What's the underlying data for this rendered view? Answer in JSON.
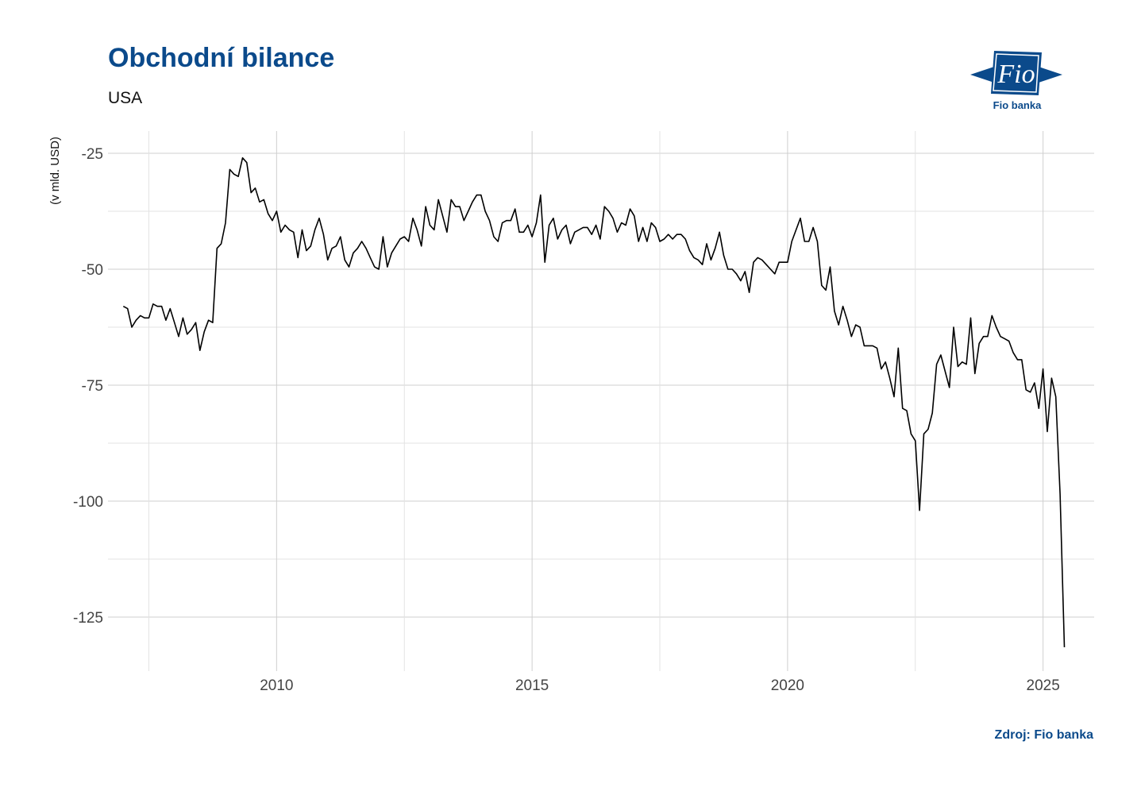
{
  "header": {
    "title": "Obchodní bilance",
    "subtitle": "USA"
  },
  "logo": {
    "icon": "fio-logo-icon",
    "text": "Fio banka",
    "color": "#0b4a8b"
  },
  "source": "Zdroj: Fio banka",
  "chart_data": {
    "type": "line",
    "title": "Obchodní bilance",
    "subtitle": "USA",
    "xlabel": "",
    "ylabel": "(v mld. USD)",
    "xlim": [
      2006.7,
      2026.0
    ],
    "ylim": [
      -136,
      -20
    ],
    "x_ticks": [
      2010,
      2015,
      2020,
      2025
    ],
    "x_tick_labels": [
      "2010",
      "2015",
      "2020",
      "2025"
    ],
    "y_ticks": [
      -25,
      -50,
      -75,
      -100,
      -125
    ],
    "y_tick_labels": [
      "-25",
      "-50",
      "-75",
      "-100",
      "-125"
    ],
    "grid": true,
    "line_color": "#000000",
    "series": [
      {
        "x_start": 2007.0,
        "x_step": 0.0833333,
        "values": [
          -58.0,
          -58.5,
          -62.5,
          -61.0,
          -60.0,
          -60.5,
          -60.5,
          -57.5,
          -58.0,
          -58.0,
          -61.0,
          -58.5,
          -61.5,
          -64.5,
          -60.5,
          -64.0,
          -63.0,
          -61.5,
          -67.5,
          -63.5,
          -61.0,
          -61.5,
          -45.5,
          -44.5,
          -40.0,
          -28.5,
          -29.5,
          -30.0,
          -26.0,
          -27.0,
          -33.5,
          -32.5,
          -35.5,
          -35.0,
          -38.0,
          -39.5,
          -37.5,
          -42.0,
          -40.5,
          -41.5,
          -42.0,
          -47.5,
          -41.5,
          -46.0,
          -45.0,
          -41.5,
          -39.0,
          -42.5,
          -48.0,
          -45.5,
          -45.0,
          -43.0,
          -48.0,
          -49.5,
          -46.5,
          -45.5,
          -44.0,
          -45.5,
          -47.5,
          -49.5,
          -50.0,
          -43.0,
          -49.5,
          -46.5,
          -45.0,
          -43.5,
          -43.0,
          -44.0,
          -39.0,
          -41.5,
          -45.0,
          -36.5,
          -40.5,
          -41.5,
          -35.0,
          -38.5,
          -42.0,
          -35.0,
          -36.5,
          -36.5,
          -39.5,
          -37.5,
          -35.5,
          -34.0,
          -34.0,
          -37.5,
          -39.5,
          -43.0,
          -44.0,
          -40.0,
          -39.5,
          -39.5,
          -37.0,
          -42.0,
          -42.0,
          -40.5,
          -43.0,
          -40.0,
          -34.0,
          -48.5,
          -40.5,
          -39.0,
          -43.5,
          -41.5,
          -40.5,
          -44.5,
          -42.0,
          -41.5,
          -41.0,
          -41.0,
          -42.5,
          -40.5,
          -43.5,
          -36.5,
          -37.5,
          -39.0,
          -42.0,
          -40.0,
          -40.5,
          -37.0,
          -38.5,
          -44.0,
          -41.0,
          -44.0,
          -40.0,
          -41.0,
          -44.0,
          -43.5,
          -42.5,
          -43.5,
          -42.5,
          -42.5,
          -43.5,
          -46.0,
          -47.5,
          -48.0,
          -49.0,
          -44.5,
          -48.0,
          -45.5,
          -42.0,
          -47.0,
          -50.0,
          -50.0,
          -51.0,
          -52.5,
          -50.5,
          -55.0,
          -48.5,
          -47.5,
          -48.0,
          -49.0,
          -50.0,
          -51.0,
          -48.5,
          -48.5,
          -48.5,
          -44.0,
          -41.5,
          -39.0,
          -44.0,
          -44.0,
          -41.0,
          -44.0,
          -53.5,
          -54.5,
          -49.5,
          -59.0,
          -62.0,
          -58.0,
          -61.0,
          -64.5,
          -62.0,
          -62.5,
          -66.5,
          -66.5,
          -66.5,
          -67.0,
          -71.5,
          -70.0,
          -73.5,
          -77.5,
          -67.0,
          -80.0,
          -80.5,
          -85.5,
          -87.0,
          -102.0,
          -85.5,
          -84.5,
          -81.0,
          -70.5,
          -68.5,
          -72.0,
          -75.5,
          -62.5,
          -71.0,
          -70.0,
          -70.5,
          -60.5,
          -72.5,
          -66.0,
          -64.5,
          -64.5,
          -60.0,
          -62.5,
          -64.5,
          -65.0,
          -65.5,
          -68.0,
          -69.5,
          -69.5,
          -76.0,
          -76.5,
          -74.5,
          -80.0,
          -71.5,
          -85.0,
          -73.5,
          -77.5,
          -98.5,
          -131.5
        ]
      }
    ]
  }
}
